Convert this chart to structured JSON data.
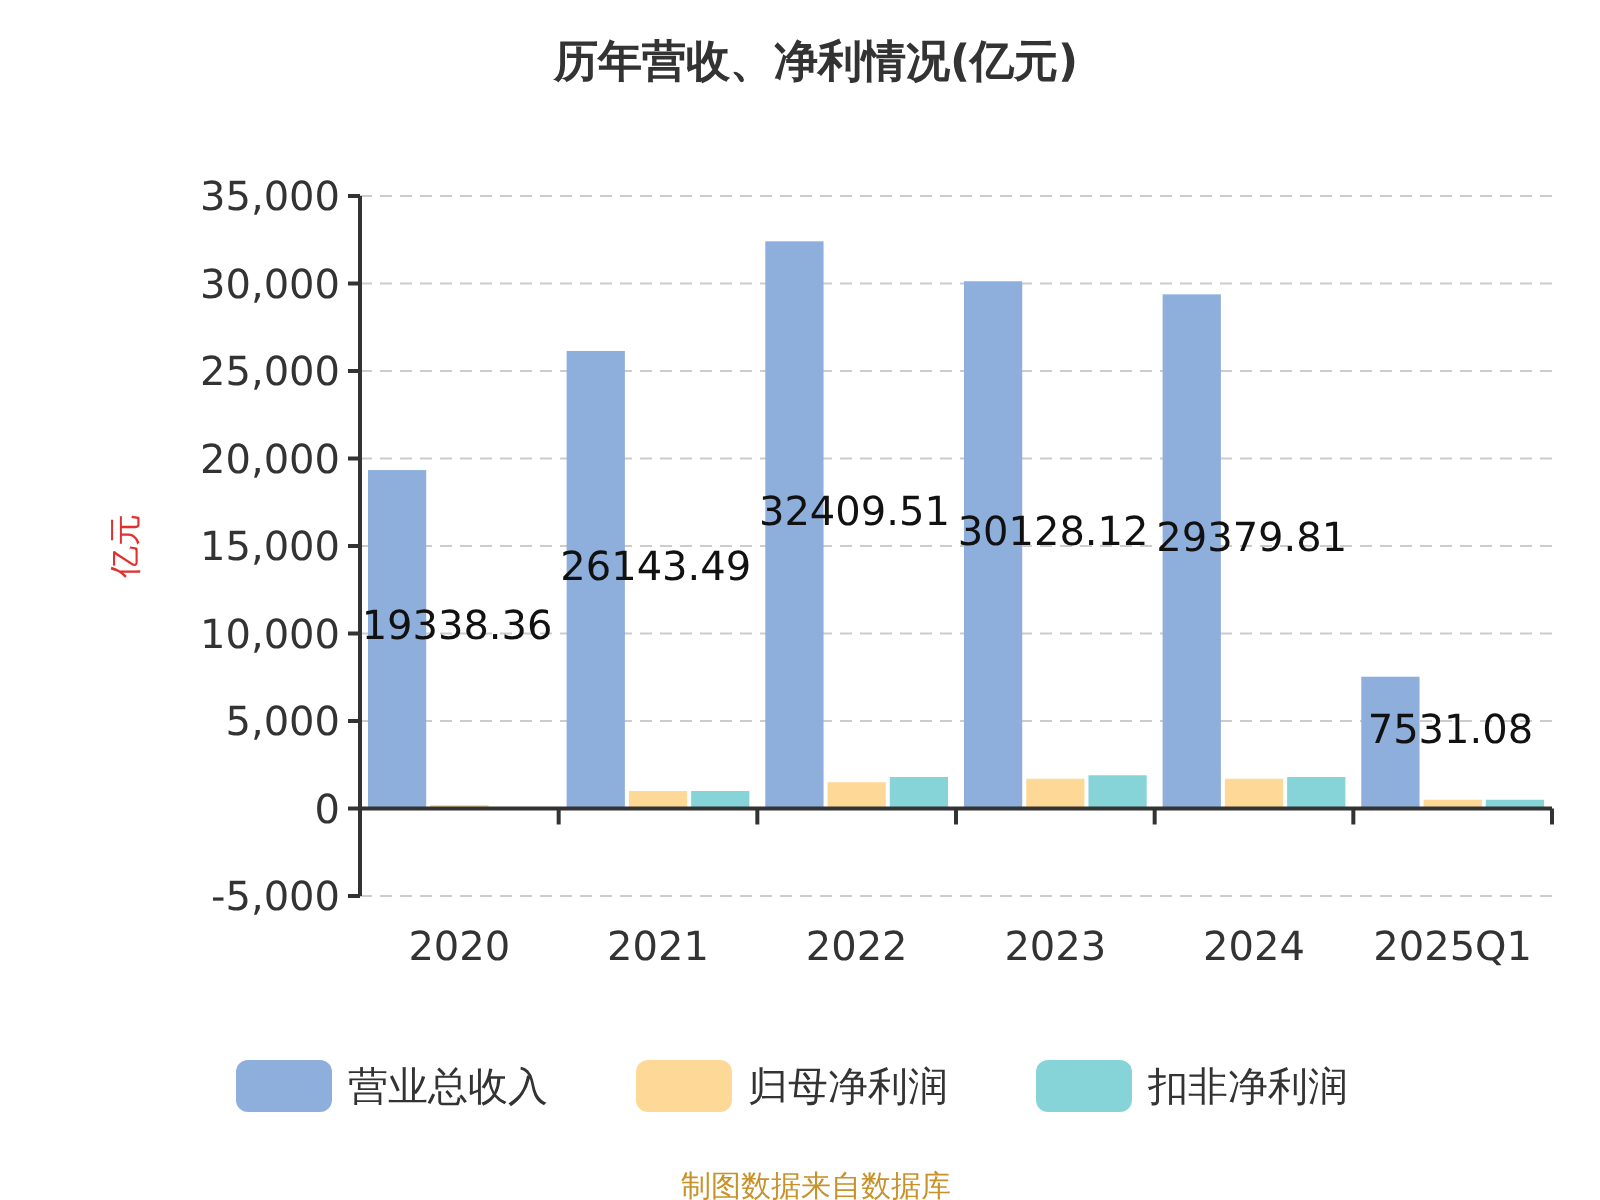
{
  "chart_data": {
    "type": "bar",
    "title": "历年营收、净利情况(亿元)",
    "ylabel": "亿元",
    "categories": [
      "2020",
      "2021",
      "2022",
      "2023",
      "2024",
      "2025Q1"
    ],
    "series": [
      {
        "name": "营业总收入",
        "color": "#8eaedb",
        "values": [
          19338.36,
          26143.49,
          32409.51,
          30128.12,
          29379.81,
          7531.08
        ],
        "value_labels": [
          "19338.36",
          "26143.49",
          "32409.51",
          "30128.12",
          "29379.81",
          "7531.08"
        ]
      },
      {
        "name": "归母净利润",
        "color": "#fed897",
        "values": [
          200,
          1000,
          1500,
          1700,
          1700,
          500
        ]
      },
      {
        "name": "扣非净利润",
        "color": "#86d4d8",
        "values": [
          null,
          1000,
          1800,
          1900,
          1800,
          500
        ]
      }
    ],
    "ylim": [
      -5000,
      35000
    ],
    "yticks": [
      {
        "value": -5000,
        "label": "-5,000"
      },
      {
        "value": 0,
        "label": "0"
      },
      {
        "value": 5000,
        "label": "5,000"
      },
      {
        "value": 10000,
        "label": "10,000"
      },
      {
        "value": 15000,
        "label": "15,000"
      },
      {
        "value": 20000,
        "label": "20,000"
      },
      {
        "value": 25000,
        "label": "25,000"
      },
      {
        "value": 30000,
        "label": "30,000"
      },
      {
        "value": 35000,
        "label": "35,000"
      }
    ],
    "grid": "y",
    "legend": "bottom",
    "annotations": [
      "制图数据来自数据库"
    ]
  }
}
